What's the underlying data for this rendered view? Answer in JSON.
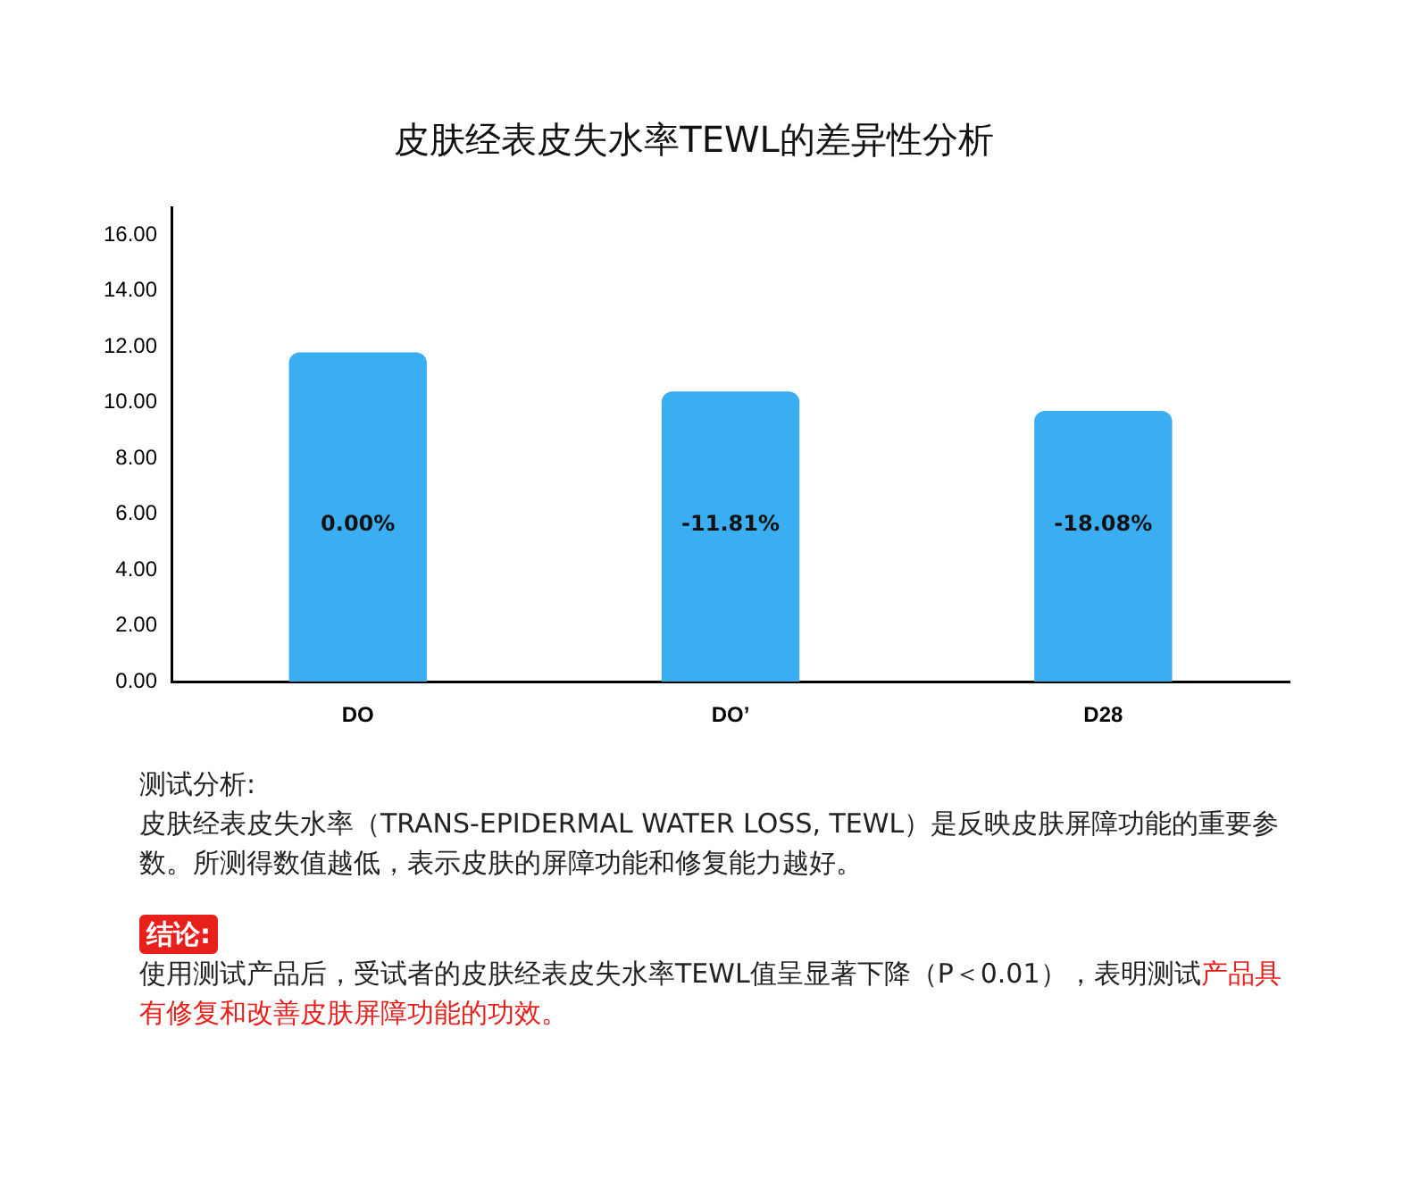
{
  "chart_data": {
    "type": "bar",
    "title": "皮肤经表皮失水率TEWL的差异性分析",
    "categories": [
      "DO",
      "DO’",
      "D28"
    ],
    "values": [
      11.8,
      10.4,
      9.7
    ],
    "color": "#3aaef0",
    "ylim": [
      0,
      17
    ],
    "yticks": [
      {
        "value": 0,
        "label": "0.00"
      },
      {
        "value": 2,
        "label": "2.00"
      },
      {
        "value": 4,
        "label": "4.00"
      },
      {
        "value": 6,
        "label": "6.00"
      },
      {
        "value": 8,
        "label": "8.00"
      },
      {
        "value": 10,
        "label": "10.00"
      },
      {
        "value": 12,
        "label": "12.00"
      },
      {
        "value": 14,
        "label": "14.00"
      },
      {
        "value": 16,
        "label": "16.00"
      }
    ],
    "grid": false,
    "legend": false,
    "annotations": [
      "0.00%",
      "-11.81%",
      "-18.08%",
      "测试分析:",
      "皮肤经表皮失水率（TRANS-EPIDERMAL WATER LOSS, TEWL）是反映皮肤屏障功能的重要参数。所测得数值越低，表示皮肤的屏障功能和修复能力越好。",
      "结论:",
      "使用测试产品后，受试者的皮肤经表皮失水率TEWL值呈显著下降（P＜0.01），表明测试",
      "产品具有修复和改善皮肤屏障功能的功效。"
    ]
  }
}
